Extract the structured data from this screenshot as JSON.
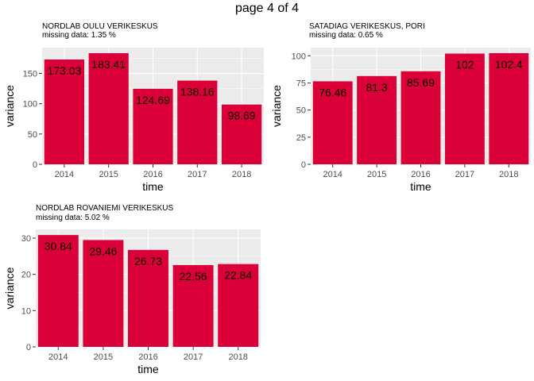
{
  "page": {
    "title": "page 4 of 4"
  },
  "colors": {
    "bar": "#dc0038",
    "panel_bg": "#ebebeb",
    "grid": "#ffffff"
  },
  "chart_data": [
    {
      "type": "bar",
      "title": "NORDLAB OULU VERIKESKUS",
      "subtitle": " missing data:  1.35 %",
      "xlabel": "time",
      "ylabel": "variance",
      "categories": [
        "2014",
        "2015",
        "2016",
        "2017",
        "2018"
      ],
      "values": [
        173.03,
        183.41,
        124.69,
        138.16,
        98.69
      ],
      "value_labels": [
        "173.03",
        "183.41",
        "124.69",
        "138.16",
        "98.69"
      ],
      "yticks": [
        0,
        50,
        100,
        150
      ],
      "ylim": [
        0,
        192.6
      ],
      "grid": true
    },
    {
      "type": "bar",
      "title": "SATADIAG VERIKESKUS, PORI",
      "subtitle": " missing data:  0.65 %",
      "xlabel": "time",
      "ylabel": "variance",
      "categories": [
        "2014",
        "2015",
        "2016",
        "2017",
        "2018"
      ],
      "values": [
        76.46,
        81.3,
        85.69,
        102,
        102.4
      ],
      "value_labels": [
        "76.46",
        "81.3",
        "85.69",
        "102",
        "102.4"
      ],
      "yticks": [
        0,
        25,
        50,
        75,
        100
      ],
      "ylim": [
        0,
        107.5
      ],
      "grid": true
    },
    {
      "type": "bar",
      "title": "NORDLAB ROVANIEMI VERIKESKUS",
      "subtitle": " missing data:  5.02 %",
      "xlabel": "time",
      "ylabel": "variance",
      "categories": [
        "2014",
        "2015",
        "2016",
        "2017",
        "2018"
      ],
      "values": [
        30.84,
        29.46,
        26.73,
        22.56,
        22.84
      ],
      "value_labels": [
        "30.84",
        "29.46",
        "26.73",
        "22.56",
        "22.84"
      ],
      "yticks": [
        0,
        10,
        20,
        30
      ],
      "ylim": [
        0,
        32.4
      ],
      "grid": true
    }
  ]
}
